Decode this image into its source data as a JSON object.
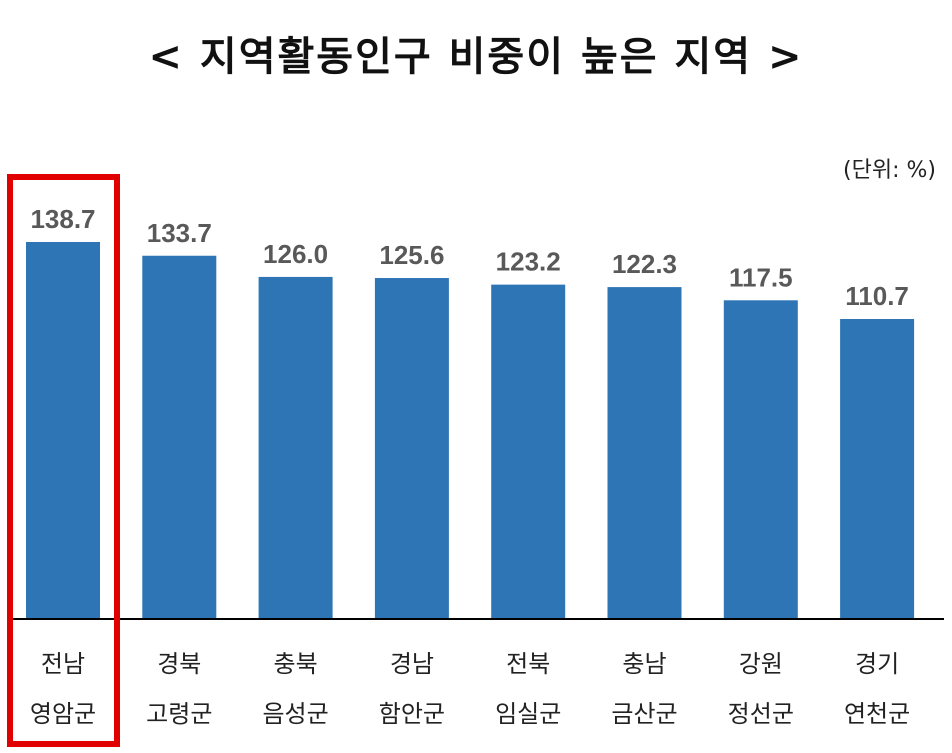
{
  "title": "< 지역활동인구 비중이 높은 지역 >",
  "unit": "(단위: %)",
  "colors": {
    "bar": "#2e75b6",
    "highlight": "#e00000",
    "axis": "#000000"
  },
  "chart_data": {
    "type": "bar",
    "title": "< 지역활동인구 비중이 높은 지역 >",
    "unit": "(단위: %)",
    "categories": [
      [
        "전남",
        "영암군"
      ],
      [
        "경북",
        "고령군"
      ],
      [
        "충북",
        "음성군"
      ],
      [
        "경남",
        "함안군"
      ],
      [
        "전북",
        "임실군"
      ],
      [
        "충남",
        "금산군"
      ],
      [
        "강원",
        "정선군"
      ],
      [
        "경기",
        "연천군"
      ]
    ],
    "values": [
      138.7,
      133.7,
      126.0,
      125.6,
      123.2,
      122.3,
      117.5,
      110.7
    ],
    "value_labels": [
      "138.7",
      "133.7",
      "126.0",
      "125.6",
      "123.2",
      "122.3",
      "117.5",
      "110.7"
    ],
    "highlight_index": 0,
    "grid": false
  }
}
